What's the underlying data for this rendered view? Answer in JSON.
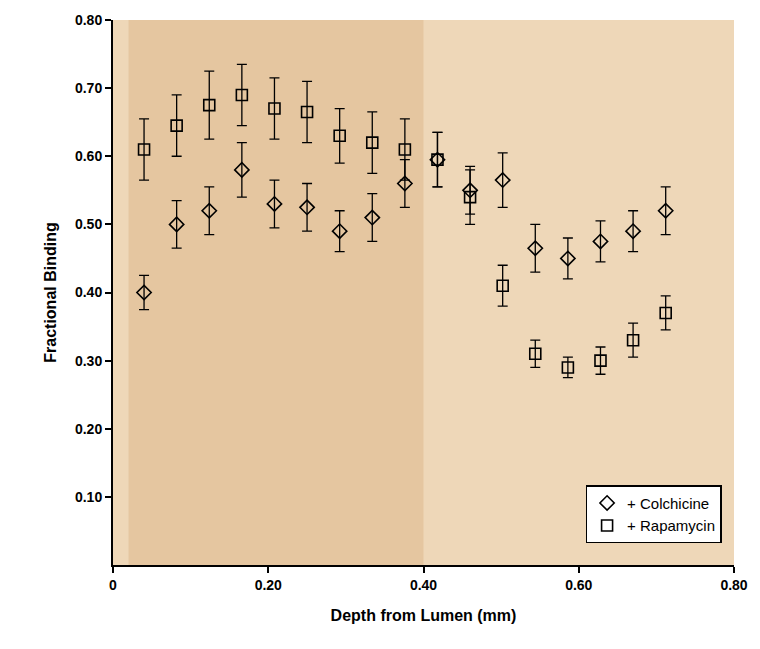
{
  "chart_data": {
    "type": "scatter",
    "x_label": "Depth from Lumen (mm)",
    "y_label": "Fractional Binding",
    "xlim": [
      0,
      0.8
    ],
    "ylim": [
      0,
      0.8
    ],
    "xticks": [
      0,
      {
        "value": 0.2,
        "label": "0.20"
      },
      {
        "value": 0.4,
        "label": "0.40"
      },
      {
        "value": 0.6,
        "label": "0.60"
      },
      {
        "value": 0.8,
        "label": "0.80"
      }
    ],
    "yticks": [
      {
        "value": 0.1,
        "label": "0.10"
      },
      {
        "value": 0.2,
        "label": "0.20"
      },
      {
        "value": 0.3,
        "label": "0.30"
      },
      {
        "value": 0.4,
        "label": "0.40"
      },
      {
        "value": 0.5,
        "label": "0.50"
      },
      {
        "value": 0.6,
        "label": "0.60"
      },
      {
        "value": 0.7,
        "label": "0.70"
      },
      {
        "value": 0.8,
        "label": "0.80"
      }
    ],
    "grid": false,
    "legend": "bottom right",
    "x": [
      0.04,
      0.082,
      0.124,
      0.166,
      0.208,
      0.25,
      0.292,
      0.334,
      0.376,
      0.418,
      0.46,
      0.502,
      0.544,
      0.586,
      0.628,
      0.67,
      0.712
    ],
    "series": [
      {
        "name": "+ Colchicine",
        "color": "#000000",
        "marker": "diamond",
        "values": [
          0.4,
          0.5,
          0.52,
          0.58,
          0.53,
          0.525,
          0.49,
          0.51,
          0.56,
          0.595,
          0.55,
          0.565,
          0.465,
          0.45,
          0.475,
          0.49,
          0.52
        ],
        "errors": [
          0.025,
          0.035,
          0.035,
          0.04,
          0.035,
          0.035,
          0.03,
          0.035,
          0.035,
          0.04,
          0.035,
          0.04,
          0.035,
          0.03,
          0.03,
          0.03,
          0.035
        ]
      },
      {
        "name": "+ Rapamycin",
        "color": "#000000",
        "marker": "square",
        "values": [
          0.61,
          0.645,
          0.675,
          0.69,
          0.67,
          0.665,
          0.63,
          0.62,
          0.61,
          0.595,
          0.54,
          0.41,
          0.31,
          0.29,
          0.3,
          0.33,
          0.37
        ],
        "errors": [
          0.045,
          0.045,
          0.05,
          0.045,
          0.045,
          0.045,
          0.04,
          0.045,
          0.045,
          0.04,
          0.04,
          0.03,
          0.02,
          0.015,
          0.02,
          0.025,
          0.025
        ]
      }
    ]
  }
}
